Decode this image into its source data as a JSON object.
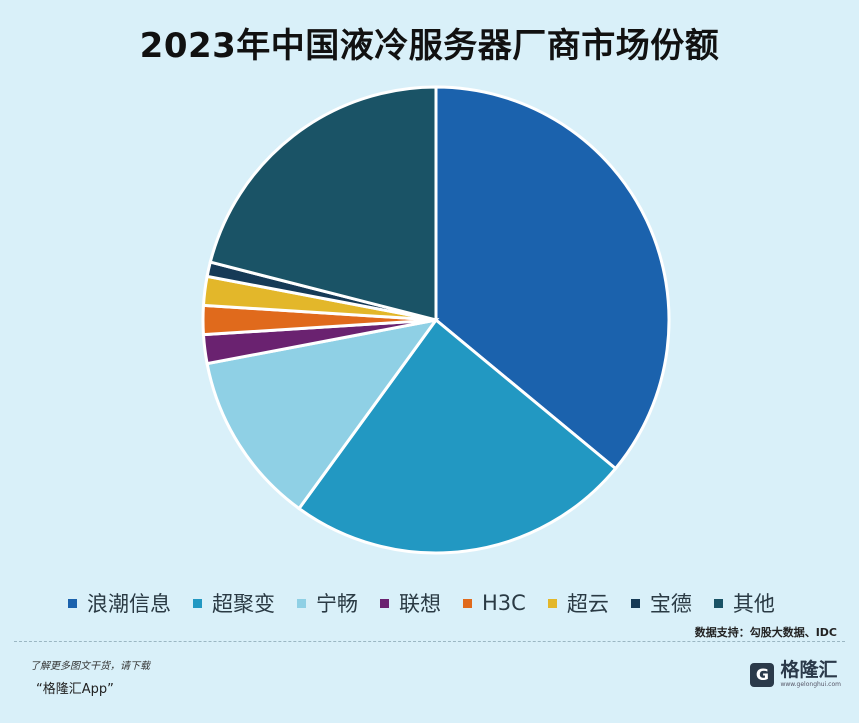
{
  "chart_data": {
    "type": "pie",
    "title": "2023年中国液冷服务器厂商市场份额",
    "categories": [
      "浪潮信息",
      "超聚变",
      "宁畅",
      "联想",
      "H3C",
      "超云",
      "宝德",
      "其他"
    ],
    "values": [
      36,
      24,
      12,
      2,
      2,
      2,
      1,
      21
    ],
    "colors": [
      "#1b62ad",
      "#2298c2",
      "#8fd0e5",
      "#6a2270",
      "#e06a1c",
      "#e3b72a",
      "#163a56",
      "#1a5366"
    ],
    "unit": "%",
    "legend_position": "bottom"
  },
  "footer": {
    "source": "数据支持：勾股大数据、IDC",
    "promo_line1": "了解更多图文干货，请下载",
    "promo_line2": "“格隆汇App”",
    "brand_name": "格隆汇",
    "brand_mark": "G",
    "brand_url": "www.gelonghui.com"
  }
}
